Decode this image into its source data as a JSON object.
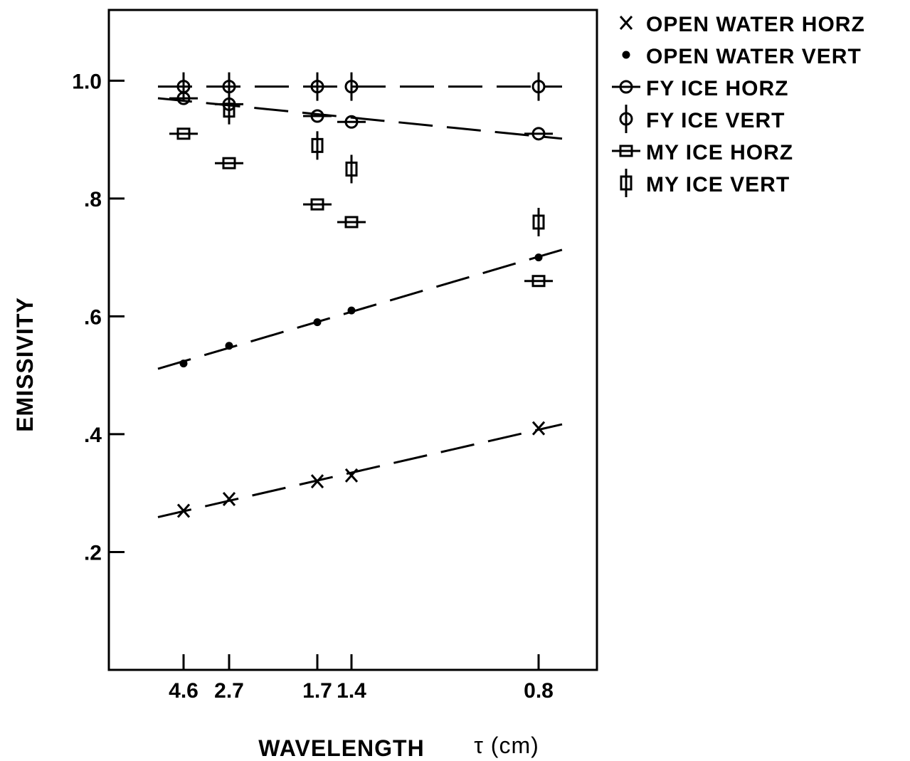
{
  "chart_data": {
    "type": "scatter",
    "title": "",
    "xlabel": "WAVELENGTH",
    "xlabel_unit": "τ (cm)",
    "ylabel": "EMISSIVITY",
    "x_categories": [
      "4.6",
      "2.7",
      "1.7",
      "1.4",
      "0.8"
    ],
    "ylim": [
      0.0,
      1.12
    ],
    "yticks": [
      0.2,
      0.4,
      0.6,
      0.8,
      1.0
    ],
    "ytick_labels": [
      ".2",
      ".4",
      ".6",
      ".8",
      "1.0"
    ],
    "grid": false,
    "legend_position": "top-right, outside plot",
    "series": [
      {
        "name": "OPEN WATER HORZ",
        "marker": "x",
        "values": [
          0.27,
          0.29,
          0.32,
          0.33,
          0.41
        ]
      },
      {
        "name": "OPEN WATER VERT",
        "marker": "dot",
        "values": [
          0.52,
          0.55,
          0.59,
          0.61,
          0.7
        ]
      },
      {
        "name": "FY ICE HORZ",
        "marker": "circle-h",
        "values": [
          0.97,
          0.96,
          0.94,
          0.93,
          0.91
        ]
      },
      {
        "name": "FY ICE VERT",
        "marker": "circle-v",
        "values": [
          0.99,
          0.99,
          0.99,
          0.99,
          0.99
        ]
      },
      {
        "name": "MY ICE HORZ",
        "marker": "square-h",
        "values": [
          0.91,
          0.86,
          0.79,
          0.76,
          0.66
        ]
      },
      {
        "name": "MY ICE VERT",
        "marker": "square-v",
        "values": [
          null,
          0.95,
          0.89,
          0.85,
          0.76
        ]
      }
    ]
  }
}
